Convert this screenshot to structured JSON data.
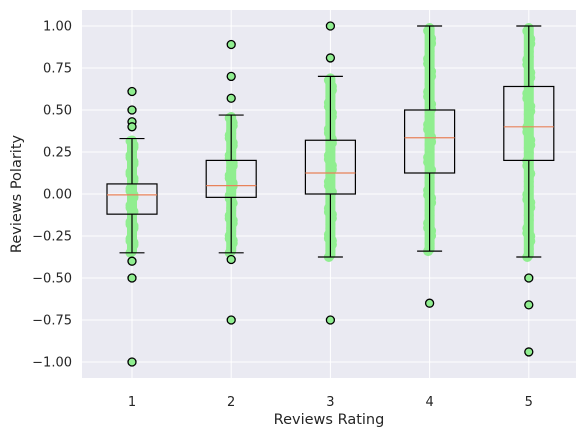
{
  "chart_data": {
    "type": "box",
    "xlabel": "Reviews Rating",
    "ylabel": "Reviews Polarity",
    "ylim": [
      -1.1,
      1.1
    ],
    "yticks": [
      -1.0,
      -0.75,
      -0.5,
      -0.25,
      0.0,
      0.25,
      0.5,
      0.75,
      1.0
    ],
    "ytick_labels": [
      "−1.00",
      "−0.75",
      "−0.50",
      "−0.25",
      "0.00",
      "0.25",
      "0.50",
      "0.75",
      "1.00"
    ],
    "categories": [
      "1",
      "2",
      "3",
      "4",
      "5"
    ],
    "grid": true,
    "colors": {
      "background": "#eaeaf2",
      "grid": "#ffffff",
      "box": "#000000",
      "median": "#e8825a",
      "points": "#90ee90",
      "flier_fill": "#90ee90",
      "flier_edge": "#000000"
    },
    "boxes": [
      {
        "category": "1",
        "whisker_low": -0.35,
        "q1": -0.12,
        "median": -0.005,
        "q3": 0.06,
        "whisker_high": 0.33,
        "points_range": [
          -0.35,
          0.33
        ],
        "fliers": [
          0.61,
          0.5,
          0.43,
          0.4,
          -0.4,
          -0.5,
          -1.0
        ]
      },
      {
        "category": "2",
        "whisker_low": -0.35,
        "q1": -0.02,
        "median": 0.05,
        "q3": 0.2,
        "whisker_high": 0.47,
        "points_range": [
          -0.35,
          0.47
        ],
        "fliers": [
          0.89,
          0.7,
          0.57,
          -0.39,
          -0.75
        ]
      },
      {
        "category": "3",
        "whisker_low": -0.375,
        "q1": 0.0,
        "median": 0.125,
        "q3": 0.32,
        "whisker_high": 0.7,
        "points_range": [
          -0.375,
          0.7
        ],
        "fliers": [
          1.0,
          0.81,
          -0.75
        ]
      },
      {
        "category": "4",
        "whisker_low": -0.34,
        "q1": 0.125,
        "median": 0.335,
        "q3": 0.5,
        "whisker_high": 1.0,
        "points_range": [
          -0.34,
          1.0
        ],
        "fliers": [
          -0.65
        ]
      },
      {
        "category": "5",
        "whisker_low": -0.375,
        "q1": 0.2,
        "median": 0.4,
        "q3": 0.64,
        "whisker_high": 1.0,
        "points_range": [
          -0.375,
          1.0
        ],
        "fliers": [
          -0.5,
          -0.66,
          -0.94
        ]
      }
    ]
  }
}
